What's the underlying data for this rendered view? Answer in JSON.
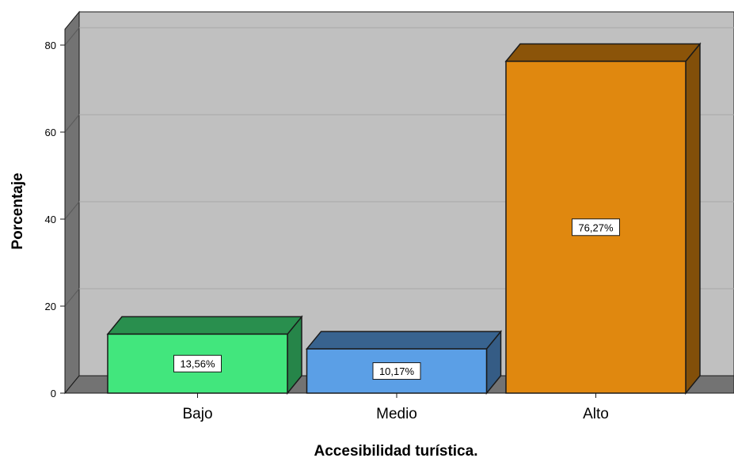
{
  "chart_data": {
    "type": "bar",
    "categories": [
      "Bajo",
      "Medio",
      "Alto"
    ],
    "values": [
      13.56,
      10.17,
      76.27
    ],
    "data_labels": [
      "13,56%",
      "10,17%",
      "76,27%"
    ],
    "colors": [
      "#42e67d",
      "#5b9fe6",
      "#e0880f"
    ],
    "xlabel": "Accesibilidad turística.",
    "ylabel": "Porcentaje",
    "ylim": [
      0,
      80
    ],
    "yticks": [
      0,
      20,
      40,
      60,
      80
    ],
    "grid": true,
    "style": "3d"
  }
}
